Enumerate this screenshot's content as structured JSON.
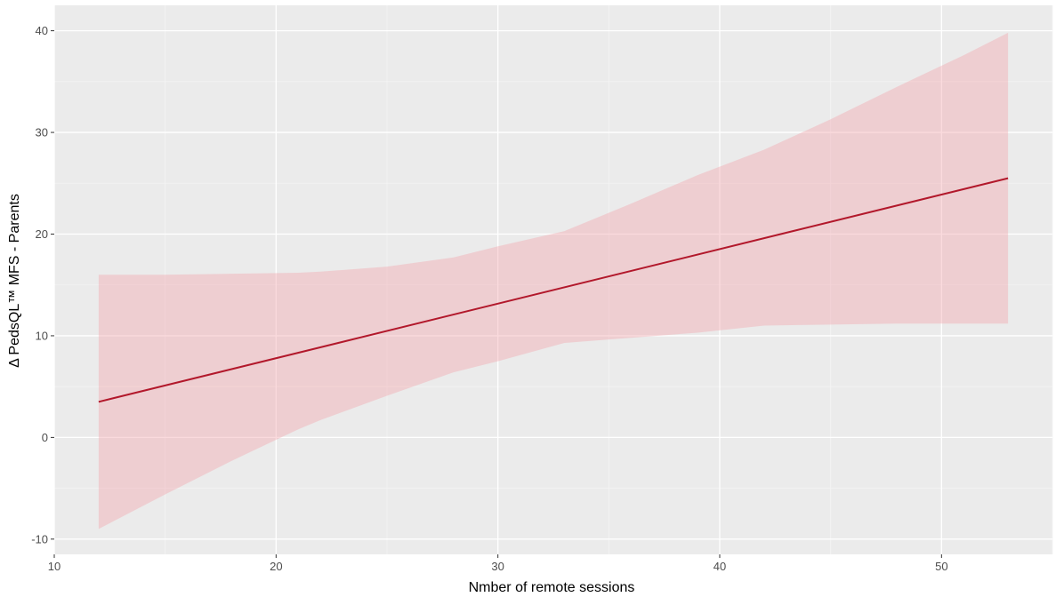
{
  "chart_data": {
    "type": "line",
    "title": "",
    "xlabel": "Nmber of remote sessions",
    "ylabel": "Δ PedsQL™ MFS - Parents",
    "xlim": [
      10,
      55
    ],
    "ylim": [
      -11.5,
      42.5
    ],
    "x_ticks": [
      10,
      20,
      30,
      40,
      50
    ],
    "y_ticks": [
      -10,
      0,
      10,
      20,
      30,
      40
    ],
    "x_tick_labels": [
      "10",
      "20",
      "30",
      "40",
      "50"
    ],
    "y_tick_labels": [
      "-10",
      "0",
      "10",
      "20",
      "30",
      "40"
    ],
    "grid": true,
    "legend": "none",
    "colors": {
      "panel_background": "#ebebeb",
      "grid_major": "#ffffff",
      "grid_minor": "#f4f4f4",
      "line": "#b2182b",
      "ribbon": "#f4a6ae"
    },
    "series": [
      {
        "x": [
          12,
          53
        ],
        "y": [
          3.5,
          25.5
        ]
      }
    ],
    "ribbon": {
      "x": [
        12,
        15,
        18,
        21,
        22,
        25,
        28,
        30,
        33,
        36,
        39,
        42,
        45,
        48,
        51,
        53
      ],
      "upper": [
        16.0,
        16.0,
        16.1,
        16.2,
        16.3,
        16.8,
        17.7,
        18.8,
        20.3,
        23.0,
        25.8,
        28.3,
        31.3,
        34.5,
        37.6,
        39.8
      ],
      "lower": [
        -9.0,
        -5.6,
        -2.3,
        0.8,
        1.7,
        4.1,
        6.4,
        7.5,
        9.3,
        9.8,
        10.3,
        11.0,
        11.1,
        11.2,
        11.2,
        11.2
      ]
    }
  }
}
